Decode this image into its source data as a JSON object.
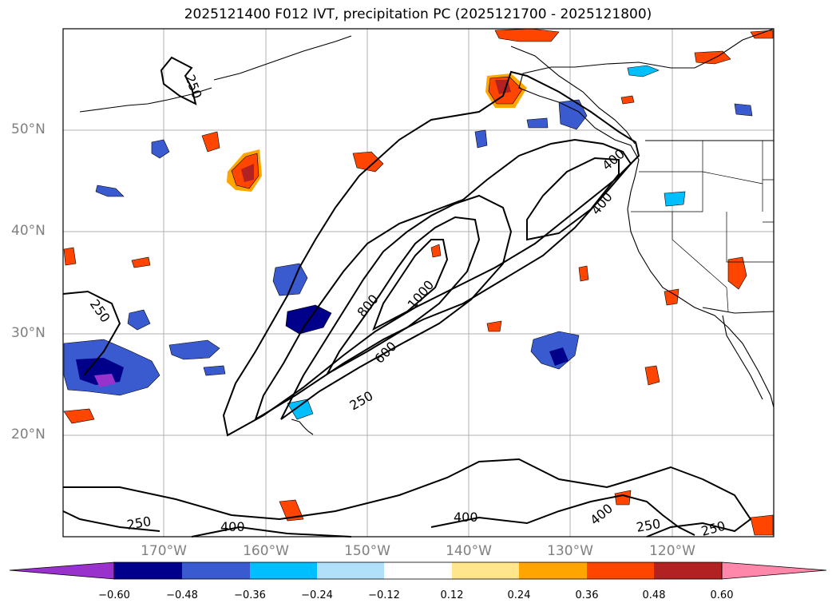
{
  "title": "2025121400 F012 IVT, precipitation PC (2025121700 - 2025121800)",
  "map": {
    "lat_labels": [
      "50°N",
      "40°N",
      "30°N",
      "20°N"
    ],
    "lon_labels": [
      "170°W",
      "160°W",
      "150°W",
      "140°W",
      "130°W",
      "120°W"
    ],
    "contour_labels": [
      "250",
      "250",
      "800",
      "1000",
      "600",
      "250",
      "400",
      "400",
      "250",
      "400",
      "400",
      "250",
      "250",
      "400"
    ]
  },
  "colorbar": {
    "colors": [
      "#9932cc",
      "#00008b",
      "#3a5bd0",
      "#00bfff",
      "#b0e0fa",
      "#ffffff",
      "#ffe68c",
      "#ffa500",
      "#ff4500",
      "#b22222",
      "#ff88aa"
    ],
    "ticks": [
      "−0.60",
      "−0.48",
      "−0.36",
      "−0.24",
      "−0.12",
      "0.12",
      "0.24",
      "0.36",
      "0.48",
      "0.60"
    ]
  }
}
